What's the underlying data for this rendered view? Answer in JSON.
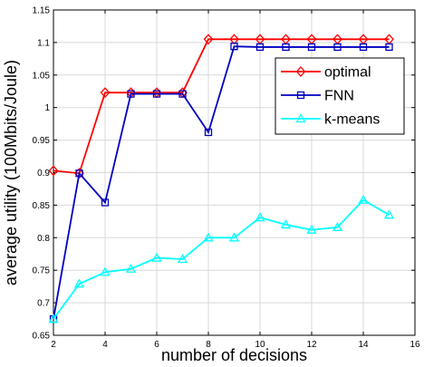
{
  "chart_data": {
    "type": "line",
    "xlabel": "number of decisions",
    "ylabel": "average utility (100Mbits/Joule)",
    "xlim": [
      2,
      16
    ],
    "ylim": [
      0.65,
      1.15
    ],
    "xticks": [
      2,
      4,
      6,
      8,
      10,
      12,
      14,
      16
    ],
    "yticks": [
      0.65,
      0.7,
      0.75,
      0.8,
      0.85,
      0.9,
      0.95,
      1,
      1.05,
      1.1,
      1.15
    ],
    "xtick_labels": [
      "2",
      "4",
      "6",
      "8",
      "10",
      "12",
      "14",
      "16"
    ],
    "ytick_labels": [
      "0.65",
      "0.7",
      "0.75",
      "0.8",
      "0.85",
      "0.9",
      "0.95",
      "1",
      "1.05",
      "1.1",
      "1.15"
    ],
    "grid": true,
    "legend_position": "top-right",
    "x": [
      2,
      3,
      4,
      5,
      6,
      7,
      8,
      9,
      10,
      11,
      12,
      13,
      14,
      15
    ],
    "series": [
      {
        "name": "optimal",
        "color": "#ff0000",
        "marker": "diamond",
        "values": [
          0.903,
          0.899,
          1.023,
          1.023,
          1.023,
          1.023,
          1.105,
          1.105,
          1.105,
          1.105,
          1.105,
          1.105,
          1.105,
          1.105
        ]
      },
      {
        "name": "FNN",
        "color": "#0000c0",
        "marker": "square",
        "values": [
          0.675,
          0.899,
          0.854,
          1.021,
          1.021,
          1.021,
          0.962,
          1.094,
          1.093,
          1.093,
          1.093,
          1.093,
          1.093,
          1.093
        ]
      },
      {
        "name": "k-means",
        "color": "#00ffff",
        "marker": "triangle",
        "values": [
          0.675,
          0.729,
          0.747,
          0.752,
          0.769,
          0.767,
          0.8,
          0.8,
          0.831,
          0.82,
          0.812,
          0.816,
          0.858,
          0.835
        ]
      }
    ]
  }
}
